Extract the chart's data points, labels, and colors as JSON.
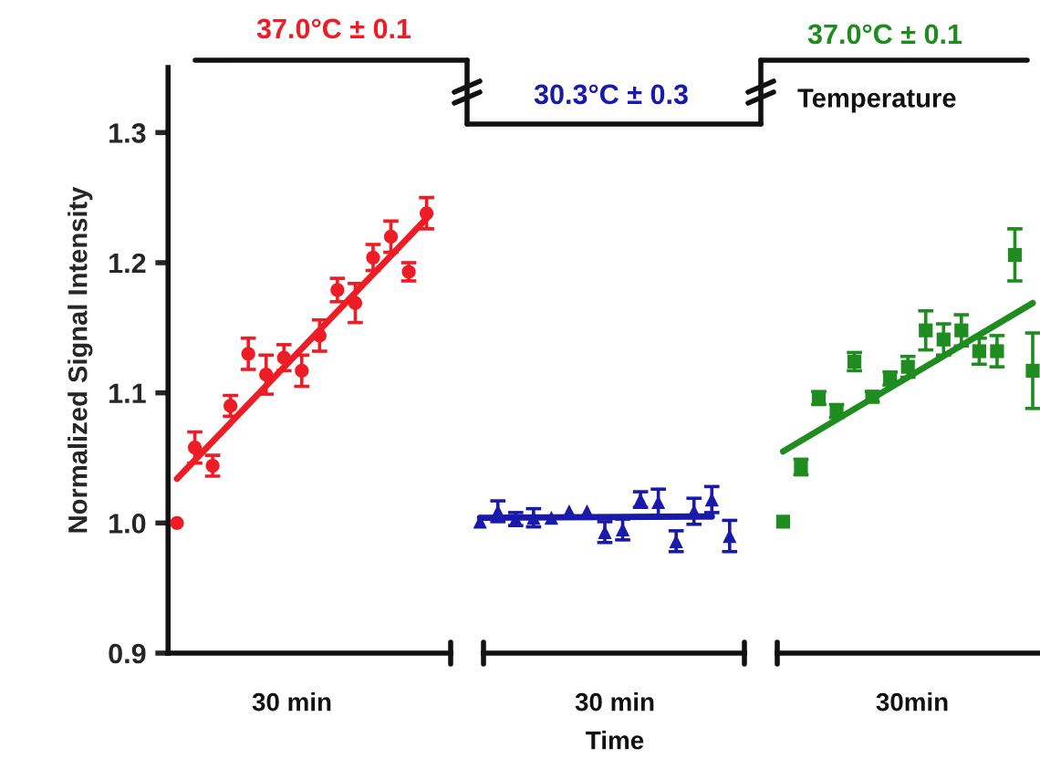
{
  "chart_data": {
    "type": "scatter",
    "ylabel": "Normalized Signal Intensity",
    "categories": [
      null,
      null,
      null,
      null,
      null,
      null,
      null,
      null,
      null,
      null,
      null,
      null,
      null,
      null,
      null,
      null,
      null,
      null,
      null,
      null,
      null,
      null,
      null,
      null,
      null,
      null,
      null,
      null,
      null,
      null,
      null,
      null,
      null,
      null,
      null,
      null,
      null,
      null,
      null,
      null,
      null,
      null,
      null,
      null,
      null,
      null,
      null,
      null,
      null
    ],
    "ylim": [
      0.9,
      1.35
    ],
    "yticks": [
      0.9,
      {
        "value": 1,
        "label": "1.0"
      },
      1.1,
      1.2,
      1.3
    ],
    "tick_labels": "y",
    "grid": false,
    "legend": false,
    "annotations": [
      "37.0°C ± 0.1",
      "30.3°C ± 0.3",
      "37.0°C ± 0.1",
      "Temperature",
      "30 min",
      "30 min",
      "30min",
      "Time"
    ],
    "series": [
      {
        "color": "#ee1c25",
        "marker": "circle",
        "values": [
          1.0,
          1.058,
          1.044,
          1.09,
          1.13,
          1.114,
          1.127,
          1.117,
          1.144,
          1.179,
          1.169,
          1.204,
          1.22,
          1.193,
          1.238,
          null,
          null,
          null,
          null,
          null,
          null,
          null,
          null,
          null,
          null,
          null,
          null,
          null,
          null,
          null,
          null,
          null,
          null,
          null,
          null,
          null,
          null,
          null,
          null,
          null,
          null,
          null,
          null,
          null,
          null,
          null,
          null,
          null,
          null
        ],
        "errors": [
          null,
          0.012,
          0.008,
          0.008,
          0.012,
          0.015,
          0.01,
          0.012,
          0.012,
          0.009,
          0.015,
          0.01,
          0.012,
          0.007,
          0.012,
          null,
          null,
          null,
          null,
          null,
          null,
          null,
          null,
          null,
          null,
          null,
          null,
          null,
          null,
          null,
          null,
          null,
          null,
          null,
          null,
          null,
          null,
          null,
          null,
          null,
          null,
          null,
          null,
          null,
          null,
          null,
          null,
          null,
          null
        ]
      },
      {
        "color": "#1a1aaa",
        "marker": "triangle",
        "values": [
          null,
          null,
          null,
          null,
          null,
          null,
          null,
          null,
          null,
          null,
          null,
          null,
          null,
          null,
          null,
          null,
          null,
          1.001,
          1.009,
          1.003,
          1.004,
          1.004,
          1.009,
          1.009,
          0.993,
          0.995,
          1.018,
          1.016,
          0.986,
          1.009,
          1.018,
          0.99,
          null,
          null,
          null,
          null,
          null,
          null,
          null,
          null,
          null,
          null,
          null,
          null,
          null,
          null,
          null,
          null,
          null
        ],
        "errors": [
          null,
          null,
          null,
          null,
          null,
          null,
          null,
          null,
          null,
          null,
          null,
          null,
          null,
          null,
          null,
          null,
          null,
          null,
          0.008,
          0.005,
          0.007,
          null,
          null,
          null,
          0.008,
          0.008,
          0.006,
          0.01,
          0.008,
          0.01,
          0.01,
          0.012,
          null,
          null,
          null,
          null,
          null,
          null,
          null,
          null,
          null,
          null,
          null,
          null,
          null,
          null,
          null,
          null,
          null
        ]
      },
      {
        "color": "#1e8c1e",
        "marker": "square",
        "values": [
          null,
          null,
          null,
          null,
          null,
          null,
          null,
          null,
          null,
          null,
          null,
          null,
          null,
          null,
          null,
          null,
          null,
          null,
          null,
          null,
          null,
          null,
          null,
          null,
          null,
          null,
          null,
          null,
          null,
          null,
          null,
          null,
          null,
          null,
          1.001,
          1.043,
          1.096,
          1.086,
          1.124,
          1.097,
          1.111,
          1.12,
          1.148,
          1.141,
          1.148,
          1.132,
          1.132,
          1.206,
          1.117
        ],
        "errors": [
          null,
          null,
          null,
          null,
          null,
          null,
          null,
          null,
          null,
          null,
          null,
          null,
          null,
          null,
          null,
          null,
          null,
          null,
          null,
          null,
          null,
          null,
          null,
          null,
          null,
          null,
          null,
          null,
          null,
          null,
          null,
          null,
          null,
          null,
          null,
          0.006,
          0.005,
          0.005,
          0.007,
          0.004,
          0.005,
          0.008,
          0.015,
          0.012,
          0.012,
          0.01,
          0.012,
          0.02,
          0.029
        ]
      },
      {
        "type": "line",
        "color": "#ee1c25",
        "values": [
          1.034,
          null,
          null,
          null,
          null,
          null,
          null,
          null,
          null,
          null,
          null,
          null,
          null,
          null,
          1.234,
          null,
          null,
          null,
          null,
          null,
          null,
          null,
          null,
          null,
          null,
          null,
          null,
          null,
          null,
          null,
          null,
          null,
          null,
          null,
          null,
          null,
          null,
          null,
          null,
          null,
          null,
          null,
          null,
          null,
          null,
          null,
          null,
          null,
          null
        ]
      },
      {
        "type": "line",
        "color": "#1a1aaa",
        "values": [
          null,
          null,
          null,
          null,
          null,
          null,
          null,
          null,
          null,
          null,
          null,
          null,
          null,
          null,
          null,
          null,
          null,
          1.004,
          null,
          null,
          null,
          null,
          null,
          null,
          null,
          null,
          null,
          null,
          null,
          null,
          1.005,
          null,
          null,
          null,
          null,
          null,
          null,
          null,
          null,
          null,
          null,
          null,
          null,
          null,
          null,
          null,
          null,
          null,
          null
        ]
      },
      {
        "type": "line",
        "color": "#1e8c1e",
        "values": [
          null,
          null,
          null,
          null,
          null,
          null,
          null,
          null,
          null,
          null,
          null,
          null,
          null,
          null,
          null,
          null,
          null,
          null,
          null,
          null,
          null,
          null,
          null,
          null,
          null,
          null,
          null,
          null,
          null,
          null,
          null,
          null,
          null,
          null,
          1.055,
          null,
          null,
          null,
          null,
          null,
          null,
          null,
          null,
          null,
          null,
          null,
          null,
          null,
          1.169
        ]
      }
    ]
  }
}
